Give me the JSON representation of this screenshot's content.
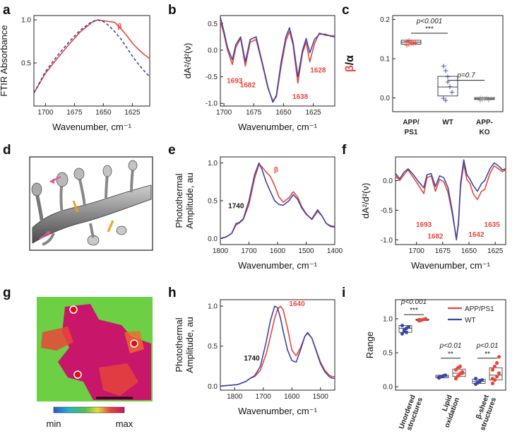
{
  "colors": {
    "red": "#e8463a",
    "blue": "#3b46a8",
    "dash": "#3b46a8",
    "black": "#111111"
  },
  "chart_data": [
    {
      "id": "a",
      "panel_label": "a",
      "type": "line",
      "xlabel": "Wavenumber, cm⁻¹",
      "ylabel": "FTIR Absorbance",
      "xlim": [
        1710,
        1610
      ],
      "ylim": [
        0,
        1.05
      ],
      "xticks": [
        1700,
        1675,
        1650,
        1625
      ],
      "yticks": [
        0.5,
        1.0
      ],
      "ytick_labels": [
        "0.5",
        "1.0"
      ],
      "series": [
        {
          "name": "beta",
          "color": "#e8463a",
          "x": [
            1710,
            1700,
            1690,
            1680,
            1670,
            1660,
            1655,
            1650,
            1645,
            1640,
            1635,
            1630,
            1625,
            1620,
            1615,
            1610
          ],
          "y": [
            0.15,
            0.38,
            0.55,
            0.71,
            0.86,
            0.97,
            1.0,
            0.99,
            0.98,
            0.97,
            0.9,
            0.82,
            0.73,
            0.66,
            0.6,
            0.55
          ]
        },
        {
          "name": "alpha",
          "color": "#3b46a8",
          "dash": true,
          "x": [
            1710,
            1700,
            1690,
            1680,
            1670,
            1660,
            1655,
            1650,
            1645,
            1640,
            1635,
            1630,
            1625,
            1620,
            1615,
            1610
          ],
          "y": [
            0.15,
            0.4,
            0.58,
            0.74,
            0.88,
            0.98,
            1.0,
            0.98,
            0.93,
            0.86,
            0.78,
            0.68,
            0.58,
            0.49,
            0.41,
            0.34
          ]
        }
      ],
      "annotations": [
        {
          "text": "β",
          "x": 1636,
          "y": 0.9,
          "color": "#e8463a"
        }
      ]
    },
    {
      "id": "b",
      "panel_label": "b",
      "type": "line",
      "xlabel": "Wavenumber, cm⁻¹",
      "ylabel": "dA²/d²(ν)",
      "xlim": [
        1703,
        1607
      ],
      "ylim": [
        -1.05,
        0.65
      ],
      "xticks": [
        1700,
        1675,
        1650,
        1625
      ],
      "yticks": [
        -1.0,
        -0.5,
        0.0,
        0.5
      ],
      "ytick_labels": [
        "-1.0",
        "-0.5",
        "0.0",
        "0.5"
      ],
      "series": [
        {
          "name": "red",
          "color": "#e8463a",
          "x": [
            1703,
            1700,
            1697,
            1693,
            1690,
            1686,
            1682,
            1678,
            1673,
            1668,
            1663,
            1659,
            1656,
            1652,
            1648,
            1645,
            1642,
            1638,
            1634,
            1631,
            1628,
            1624,
            1620,
            1615,
            1610,
            1607
          ],
          "y": [
            0.55,
            0.3,
            0.0,
            -0.27,
            0.05,
            0.22,
            -0.3,
            0.15,
            0.2,
            -0.25,
            -0.72,
            -0.95,
            -0.88,
            -0.3,
            0.18,
            0.35,
            0.1,
            -0.62,
            -0.05,
            0.15,
            -0.22,
            0.12,
            0.32,
            0.28,
            0.27,
            0.27
          ]
        },
        {
          "name": "blue",
          "color": "#3b46a8",
          "x": [
            1703,
            1700,
            1697,
            1693,
            1690,
            1686,
            1682,
            1678,
            1673,
            1668,
            1663,
            1659,
            1656,
            1652,
            1648,
            1645,
            1642,
            1638,
            1634,
            1631,
            1628,
            1624,
            1620,
            1615,
            1610,
            1607
          ],
          "y": [
            0.62,
            0.35,
            0.05,
            -0.18,
            0.1,
            0.25,
            -0.22,
            0.2,
            0.25,
            -0.22,
            -0.7,
            -0.98,
            -0.85,
            -0.22,
            0.25,
            0.42,
            0.15,
            -0.5,
            0.0,
            0.22,
            -0.05,
            0.2,
            0.3,
            0.3,
            0.26,
            0.25
          ]
        }
      ],
      "annotations": [
        {
          "text": "1693",
          "x": 1691,
          "y": -0.62,
          "color": "#e8463a"
        },
        {
          "text": "1682",
          "x": 1680,
          "y": -0.7,
          "color": "#e8463a"
        },
        {
          "text": "1638",
          "x": 1636,
          "y": -0.92,
          "color": "#e8463a"
        },
        {
          "text": "1628",
          "x": 1621,
          "y": -0.42,
          "color": "#e8463a"
        }
      ]
    },
    {
      "id": "c",
      "panel_label": "c",
      "type": "box",
      "ylabel_main": "β/α",
      "ylabel_parts": [
        {
          "text": "β",
          "color": "#e8463a"
        },
        {
          "text": "/α",
          "color": "#111111"
        }
      ],
      "ylim": [
        -0.035,
        0.21
      ],
      "yticks": [
        0.0,
        0.1,
        0.2
      ],
      "ytick_labels": [
        "0.0",
        "0.1",
        "0.2"
      ],
      "categories": [
        "APP/ PS1",
        "WT",
        "APP- KO"
      ],
      "groups": [
        {
          "name": "APP/ PS1",
          "color": "#e8463a",
          "q1": 0.137,
          "median": 0.142,
          "q3": 0.147,
          "points": [
            0.135,
            0.138,
            0.14,
            0.142,
            0.143,
            0.145,
            0.147,
            0.144,
            0.139,
            0.141
          ]
        },
        {
          "name": "WT",
          "color": "#3b46a8",
          "q1": 0.005,
          "median": 0.028,
          "q3": 0.055,
          "points": [
            0.082,
            0.07,
            0.055,
            0.03,
            0.015,
            0.0,
            -0.005,
            0.042
          ]
        },
        {
          "name": "APP- KO",
          "color": "#999999",
          "q1": -0.004,
          "median": -0.002,
          "q3": 0.001,
          "points": [
            -0.005,
            -0.003,
            -0.002,
            0.0,
            -0.004,
            0.001,
            -0.001
          ]
        }
      ],
      "significance": [
        {
          "label": "p<0.001",
          "stars": "***",
          "from": 0,
          "to": 1,
          "y": 0.165
        },
        {
          "label": "p=0.7",
          "stars": "",
          "from": 1,
          "to": 2,
          "y": 0.045
        }
      ]
    },
    {
      "id": "e",
      "panel_label": "e",
      "type": "line",
      "xlabel": "Wavenumber, cm⁻¹",
      "ylabel": "Photothermal Amplitude, au",
      "xlim": [
        1800,
        1400
      ],
      "ylim": [
        -0.08,
        1.08
      ],
      "xticks": [
        1800,
        1700,
        1600,
        1500,
        1400
      ],
      "yticks": [
        0.0,
        0.5,
        1.0
      ],
      "ytick_labels": [
        "0.0",
        "0.5",
        "1.0"
      ],
      "series": [
        {
          "name": "red",
          "color": "#e8463a",
          "x": [
            1800,
            1780,
            1760,
            1745,
            1735,
            1720,
            1700,
            1680,
            1665,
            1655,
            1640,
            1625,
            1610,
            1595,
            1580,
            1560,
            1545,
            1530,
            1515,
            1500,
            1480,
            1460,
            1445,
            1430,
            1415,
            1400
          ],
          "y": [
            0.0,
            0.02,
            0.07,
            0.18,
            0.2,
            0.25,
            0.45,
            0.8,
            0.98,
            0.95,
            0.88,
            0.82,
            0.7,
            0.55,
            0.48,
            0.54,
            0.62,
            0.55,
            0.42,
            0.33,
            0.25,
            0.36,
            0.3,
            0.2,
            0.17,
            0.16
          ]
        },
        {
          "name": "blue",
          "color": "#3b46a8",
          "x": [
            1800,
            1780,
            1760,
            1745,
            1735,
            1720,
            1700,
            1680,
            1665,
            1655,
            1640,
            1625,
            1610,
            1595,
            1580,
            1560,
            1545,
            1530,
            1515,
            1500,
            1480,
            1460,
            1445,
            1430,
            1415,
            1400
          ],
          "y": [
            0.0,
            0.02,
            0.07,
            0.2,
            0.21,
            0.26,
            0.5,
            0.85,
            1.0,
            0.92,
            0.75,
            0.62,
            0.5,
            0.45,
            0.44,
            0.5,
            0.58,
            0.52,
            0.4,
            0.32,
            0.26,
            0.38,
            0.3,
            0.2,
            0.16,
            0.15
          ]
        }
      ],
      "annotations": [
        {
          "text": "1740",
          "x": 1745,
          "y": 0.4,
          "color": "#111111"
        },
        {
          "text": "β",
          "x": 1605,
          "y": 0.88,
          "color": "#e8463a"
        }
      ]
    },
    {
      "id": "f",
      "panel_label": "f",
      "type": "line",
      "xlabel": "Wavenumber, cm⁻¹",
      "ylabel": "dA²/d²(ν)",
      "xlim": [
        1720,
        1615
      ],
      "ylim": [
        -1.08,
        0.4
      ],
      "xticks": [
        1700,
        1675,
        1650,
        1625
      ],
      "yticks": [
        -1.0,
        -0.5,
        0.0
      ],
      "ytick_labels": [
        "-1.0",
        "-0.5",
        "0.0"
      ],
      "series": [
        {
          "name": "red",
          "color": "#e8463a",
          "x": [
            1720,
            1716,
            1712,
            1708,
            1703,
            1698,
            1693,
            1690,
            1686,
            1682,
            1678,
            1674,
            1670,
            1666,
            1662,
            1660,
            1658,
            1655,
            1652,
            1649,
            1646,
            1642,
            1638,
            1635,
            1630,
            1626,
            1622,
            1618,
            1615
          ],
          "y": [
            0.08,
            0.0,
            0.1,
            0.18,
            0.05,
            -0.08,
            -0.22,
            0.05,
            0.08,
            -0.18,
            0.02,
            -0.02,
            -0.2,
            -0.55,
            -0.98,
            -0.75,
            -0.1,
            0.28,
            0.02,
            -0.05,
            -0.22,
            -0.32,
            -0.18,
            -0.15,
            0.12,
            0.25,
            0.2,
            0.15,
            0.18
          ]
        },
        {
          "name": "blue",
          "color": "#3b46a8",
          "x": [
            1720,
            1716,
            1712,
            1708,
            1703,
            1698,
            1693,
            1690,
            1686,
            1682,
            1678,
            1674,
            1670,
            1666,
            1662,
            1660,
            1658,
            1655,
            1652,
            1649,
            1646,
            1642,
            1638,
            1635,
            1630,
            1626,
            1622,
            1618,
            1615
          ],
          "y": [
            0.12,
            0.03,
            0.14,
            0.2,
            0.1,
            -0.02,
            -0.12,
            0.1,
            0.12,
            -0.1,
            0.08,
            0.05,
            -0.12,
            -0.5,
            -1.0,
            -0.7,
            -0.05,
            0.35,
            0.1,
            0.02,
            -0.08,
            -0.18,
            -0.05,
            0.0,
            0.2,
            0.3,
            0.25,
            0.18,
            0.2
          ]
        }
      ],
      "annotations": [
        {
          "text": "1693",
          "x": 1693,
          "y": -0.78,
          "color": "#e8463a"
        },
        {
          "text": "1682",
          "x": 1682,
          "y": -0.98,
          "color": "#e8463a"
        },
        {
          "text": "1642",
          "x": 1643,
          "y": -0.95,
          "color": "#e8463a"
        },
        {
          "text": "1635",
          "x": 1628,
          "y": -0.78,
          "color": "#e8463a"
        }
      ]
    },
    {
      "id": "h",
      "panel_label": "h",
      "type": "line",
      "xlabel": "Wavenumber, cm⁻¹",
      "ylabel": "Photothermal Amplitude, au",
      "xlim": [
        1850,
        1450
      ],
      "ylim": [
        -0.05,
        1.08
      ],
      "xticks": [
        1800,
        1700,
        1600,
        1500
      ],
      "yticks": [
        0.0,
        0.5,
        1.0
      ],
      "ytick_labels": [
        "0.0",
        "0.5",
        "1.0"
      ],
      "series": [
        {
          "name": "red",
          "color": "#e8463a",
          "x": [
            1850,
            1820,
            1790,
            1760,
            1745,
            1730,
            1710,
            1690,
            1675,
            1660,
            1650,
            1640,
            1630,
            1615,
            1600,
            1585,
            1570,
            1555,
            1545,
            1530,
            1515,
            1500,
            1485,
            1470,
            1460,
            1450
          ],
          "y": [
            0.0,
            0.01,
            0.02,
            0.06,
            0.1,
            0.12,
            0.2,
            0.4,
            0.62,
            0.85,
            0.96,
            1.0,
            0.95,
            0.72,
            0.45,
            0.38,
            0.48,
            0.62,
            0.66,
            0.6,
            0.45,
            0.3,
            0.2,
            0.14,
            0.12,
            0.12
          ]
        },
        {
          "name": "blue",
          "color": "#3b46a8",
          "x": [
            1850,
            1820,
            1790,
            1760,
            1745,
            1730,
            1710,
            1690,
            1675,
            1660,
            1650,
            1640,
            1630,
            1615,
            1600,
            1585,
            1570,
            1555,
            1545,
            1530,
            1515,
            1500,
            1485,
            1470,
            1460,
            1450
          ],
          "y": [
            0.0,
            0.01,
            0.02,
            0.06,
            0.1,
            0.13,
            0.25,
            0.55,
            0.82,
            1.0,
            0.98,
            0.85,
            0.68,
            0.45,
            0.32,
            0.3,
            0.45,
            0.62,
            0.67,
            0.6,
            0.44,
            0.28,
            0.18,
            0.12,
            0.1,
            0.1
          ]
        }
      ],
      "annotations": [
        {
          "text": "1740",
          "x": 1740,
          "y": 0.32,
          "color": "#111111"
        },
        {
          "text": "1640",
          "x": 1582,
          "y": 1.0,
          "color": "#e8463a"
        }
      ]
    },
    {
      "id": "i",
      "panel_label": "i",
      "type": "box",
      "ylabel": "Range",
      "ylim": [
        -0.05,
        1.28
      ],
      "yticks": [
        0.0,
        0.5,
        1.0
      ],
      "ytick_labels": [
        "0.0",
        "0.5",
        "1.0"
      ],
      "categories": [
        "Unordered structures",
        "Lipid oxidation",
        "β-sheet structures"
      ],
      "legend": [
        {
          "name": "APP/PS1",
          "color": "#e8463a"
        },
        {
          "name": "WT",
          "color": "#3b46a8"
        }
      ],
      "groups": [
        {
          "category": 0,
          "name": "WT",
          "color": "#3b46a8",
          "q1": 0.8,
          "median": 0.86,
          "q3": 0.9,
          "points": [
            0.78,
            0.82,
            0.86,
            0.88,
            0.9,
            0.84,
            0.8
          ]
        },
        {
          "category": 0,
          "name": "APP/PS1",
          "color": "#e8463a",
          "q1": 0.975,
          "median": 0.985,
          "q3": 0.995,
          "points": [
            0.97,
            0.98,
            0.99,
            1.0,
            0.985
          ]
        },
        {
          "category": 1,
          "name": "WT",
          "color": "#3b46a8",
          "q1": 0.13,
          "median": 0.15,
          "q3": 0.17,
          "points": [
            0.13,
            0.15,
            0.16,
            0.17,
            0.14
          ]
        },
        {
          "category": 1,
          "name": "APP/PS1",
          "color": "#e8463a",
          "q1": 0.15,
          "median": 0.2,
          "q3": 0.26,
          "points": [
            0.12,
            0.16,
            0.19,
            0.22,
            0.25,
            0.28,
            0.3,
            0.2
          ]
        },
        {
          "category": 2,
          "name": "WT",
          "color": "#3b46a8",
          "q1": 0.05,
          "median": 0.08,
          "q3": 0.11,
          "points": [
            0.04,
            0.06,
            0.08,
            0.1,
            0.12,
            0.07
          ]
        },
        {
          "category": 2,
          "name": "APP/PS1",
          "color": "#e8463a",
          "q1": 0.1,
          "median": 0.17,
          "q3": 0.28,
          "points": [
            0.05,
            0.1,
            0.15,
            0.2,
            0.25,
            0.3,
            0.35,
            0.44,
            0.12
          ]
        }
      ],
      "significance": [
        {
          "label": "p<0.001",
          "stars": "***",
          "category": 0,
          "y": 1.06
        },
        {
          "label": "p<0.01",
          "stars": "**",
          "category": 1,
          "y": 0.42
        },
        {
          "label": "p<0.01",
          "stars": "**",
          "category": 2,
          "y": 0.42
        }
      ]
    }
  ],
  "images": {
    "d": {
      "panel_label": "d"
    },
    "g": {
      "panel_label": "g",
      "colorbar_min": "min",
      "colorbar_max": "max"
    }
  }
}
